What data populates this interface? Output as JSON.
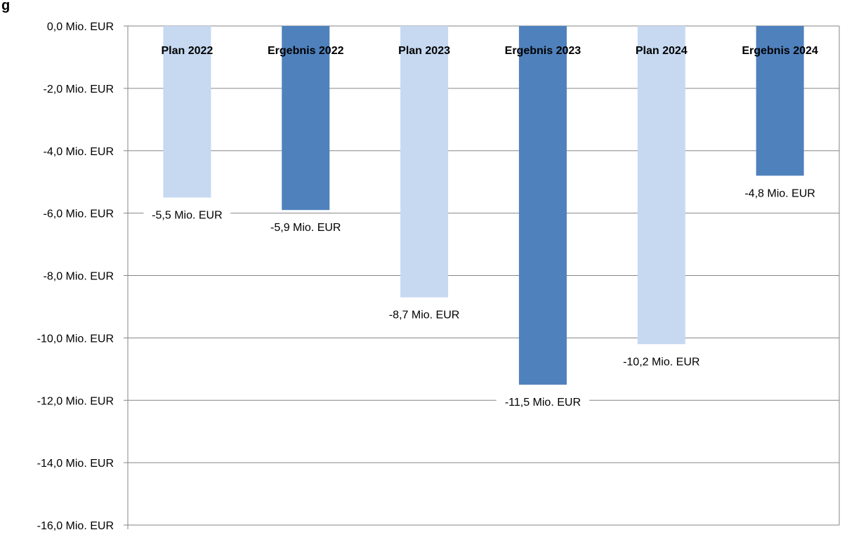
{
  "chart_data": {
    "type": "bar",
    "title": "…g                                                                                 …",
    "title_visible_fragment": "g",
    "categories": [
      "Plan 2022",
      "Ergebnis 2022",
      "Plan 2023",
      "Ergebnis 2023",
      "Plan 2024",
      "Ergebnis 2024"
    ],
    "values": [
      -5.5,
      -5.9,
      -8.7,
      -11.5,
      -10.2,
      -4.8
    ],
    "data_labels": [
      "-5,5 Mio. EUR",
      "-5,9 Mio. EUR",
      "-8,7 Mio. EUR",
      "-11,5 Mio. EUR",
      "-10,2 Mio. EUR",
      "-4,8 Mio. EUR"
    ],
    "bar_kinds": [
      "plan",
      "ergebnis",
      "plan",
      "ergebnis",
      "plan",
      "ergebnis"
    ],
    "colors": {
      "plan": "#c6d9f1",
      "ergebnis": "#4f81bd",
      "grid": "#868686",
      "axis": "#868686"
    },
    "ylim": [
      -16,
      0
    ],
    "y_ticks": [
      0,
      -2,
      -4,
      -6,
      -8,
      -10,
      -12,
      -14,
      -16
    ],
    "y_tick_labels": [
      "0,0 Mio. EUR",
      "-2,0 Mio. EUR",
      "-4,0 Mio. EUR",
      "-6,0 Mio. EUR",
      "-8,0 Mio. EUR",
      "-10,0 Mio. EUR",
      "-12,0 Mio. EUR",
      "-14,0 Mio. EUR",
      "-16,0 Mio. EUR"
    ],
    "category_label_position": "top",
    "xlabel": "",
    "ylabel": "",
    "grid": true,
    "legend": "none"
  }
}
